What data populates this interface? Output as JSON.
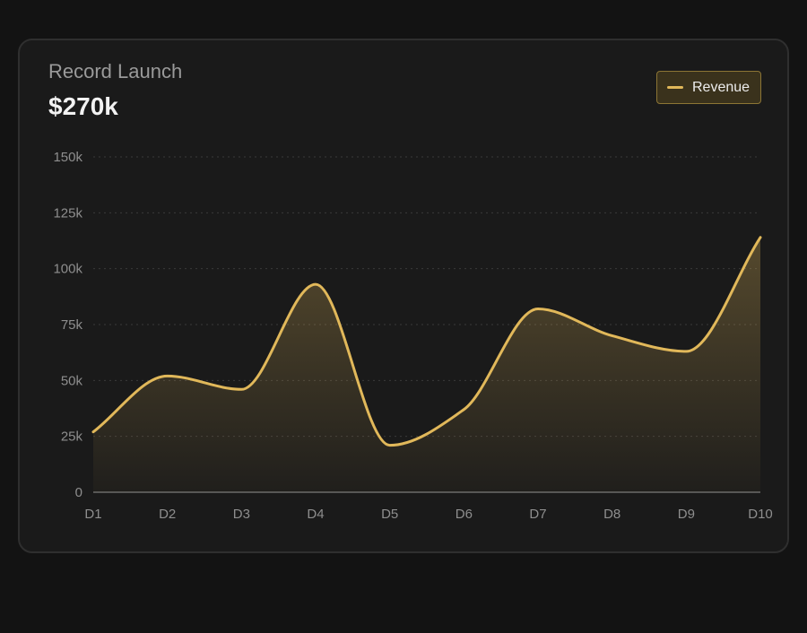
{
  "card": {
    "title": "Record Launch",
    "value": "$270k"
  },
  "colors": {
    "background": "#131313",
    "card": "#1a1a1a",
    "line": "#e1b85a",
    "grid": "#3a3a3a",
    "tick_text": "#8e8e8e"
  },
  "chart_data": {
    "type": "area",
    "x": [
      "D1",
      "D2",
      "D3",
      "D4",
      "D5",
      "D6",
      "D7",
      "D8",
      "D9",
      "D10"
    ],
    "series": [
      {
        "name": "Revenue",
        "values": [
          27,
          52,
          46,
          93,
          21,
          37,
          82,
          70,
          63,
          114
        ]
      }
    ],
    "y_ticks": [
      "0",
      "25k",
      "50k",
      "75k",
      "100k",
      "125k",
      "150k"
    ],
    "y_tick_values": [
      0,
      25,
      50,
      75,
      100,
      125,
      150
    ],
    "ylim": [
      0,
      150
    ],
    "y_unit": "k",
    "grid": true,
    "grid_style": "dotted horizontal",
    "legend_position": "top-right",
    "curve": "smooth"
  }
}
